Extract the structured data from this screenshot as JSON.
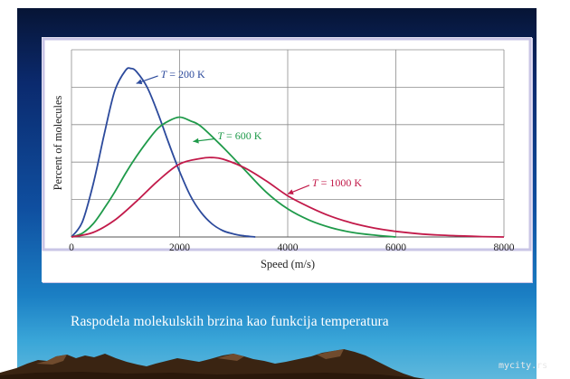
{
  "caption": "Raspodela molekulskih brzina kao funkcija temperatura",
  "watermark": "mycity.rs",
  "colors": {
    "background_top": "#06122f",
    "background_bottom": "#5fb8dc",
    "plot_frame": "#c9c5e6",
    "grid": "#8c8c8c",
    "t200": "#2c4a9c",
    "t600": "#1f9a4a",
    "t1000": "#c21a4a"
  },
  "chart_data": {
    "type": "line",
    "xlabel": "Speed (m/s)",
    "ylabel": "Percent of molecules",
    "xlim": [
      0,
      8000
    ],
    "ylim": [
      0,
      5
    ],
    "x_ticks": [
      0,
      2000,
      4000,
      6000,
      8000
    ],
    "x_tick_labels": [
      "0",
      "2000",
      "4000",
      "6000",
      "8000"
    ],
    "grid": true,
    "series": [
      {
        "name": "T = 200 K",
        "label_italic": "T",
        "label_rest": " = 200 K",
        "color": "#2c4a9c",
        "x": [
          0,
          200,
          400,
          600,
          800,
          1000,
          1100,
          1200,
          1400,
          1600,
          1800,
          2000,
          2200,
          2400,
          2600,
          2800,
          3000,
          3200,
          3400
        ],
        "y": [
          0,
          0.4,
          1.4,
          2.7,
          3.9,
          4.45,
          4.5,
          4.42,
          4.0,
          3.3,
          2.5,
          1.75,
          1.1,
          0.65,
          0.35,
          0.17,
          0.08,
          0.03,
          0
        ]
      },
      {
        "name": "T = 600 K",
        "label_italic": "T",
        "label_rest": " = 600 K",
        "color": "#1f9a4a",
        "x": [
          0,
          200,
          400,
          600,
          800,
          1000,
          1200,
          1400,
          1600,
          1800,
          2000,
          2200,
          2400,
          2800,
          3200,
          3600,
          4000,
          4400,
          4800,
          5200,
          5600,
          6000
        ],
        "y": [
          0,
          0.1,
          0.35,
          0.75,
          1.2,
          1.7,
          2.15,
          2.55,
          2.9,
          3.1,
          3.2,
          3.1,
          2.95,
          2.4,
          1.8,
          1.2,
          0.75,
          0.45,
          0.25,
          0.12,
          0.05,
          0
        ]
      },
      {
        "name": "T = 1000 K",
        "label_italic": "T",
        "label_rest": " = 1000 K",
        "color": "#c21a4a",
        "x": [
          0,
          400,
          800,
          1200,
          1600,
          2000,
          2400,
          2600,
          2800,
          3200,
          3600,
          4000,
          4400,
          4800,
          5200,
          5600,
          6000,
          6400,
          6800,
          7200,
          7600,
          8000
        ],
        "y": [
          0,
          0.12,
          0.45,
          0.95,
          1.5,
          1.95,
          2.1,
          2.12,
          2.08,
          1.85,
          1.5,
          1.1,
          0.8,
          0.55,
          0.37,
          0.24,
          0.15,
          0.09,
          0.05,
          0.03,
          0.01,
          0
        ]
      }
    ]
  }
}
